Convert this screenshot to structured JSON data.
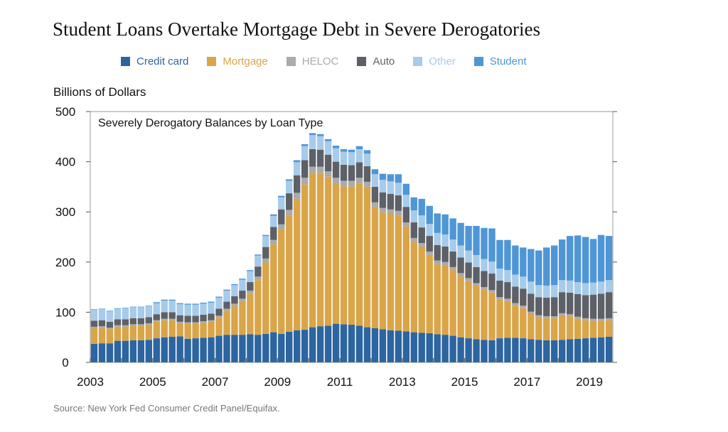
{
  "title": "Student Loans Overtake Mortgage Debt in Severe Derogatories",
  "source": "Source: New York Fed Consumer Credit Panel/Equifax.",
  "colors": {
    "Credit card": "#2c65a0",
    "Mortgage": "#d9a548",
    "HELOC": "#a9abad",
    "Auto": "#5d6167",
    "Other": "#a7cbea",
    "Student": "#4f96d6"
  },
  "chart_data": {
    "type": "bar",
    "stacked": true,
    "title": "Severely Derogatory Balances by Loan Type",
    "ylabel": "Billions of Dollars",
    "xlabel": "",
    "ylim": [
      0,
      500
    ],
    "yticks": [
      0,
      100,
      200,
      300,
      400,
      500
    ],
    "xticks": [
      "2003",
      "2005",
      "2007",
      "2009",
      "2011",
      "2013",
      "2015",
      "2017",
      "2019"
    ],
    "x_start": "2003 Q1",
    "categories": [
      "2003Q1",
      "2003Q2",
      "2003Q3",
      "2003Q4",
      "2004Q1",
      "2004Q2",
      "2004Q3",
      "2004Q4",
      "2005Q1",
      "2005Q2",
      "2005Q3",
      "2005Q4",
      "2006Q1",
      "2006Q2",
      "2006Q3",
      "2006Q4",
      "2007Q1",
      "2007Q2",
      "2007Q3",
      "2007Q4",
      "2008Q1",
      "2008Q2",
      "2008Q3",
      "2008Q4",
      "2009Q1",
      "2009Q2",
      "2009Q3",
      "2009Q4",
      "2010Q1",
      "2010Q2",
      "2010Q3",
      "2010Q4",
      "2011Q1",
      "2011Q2",
      "2011Q3",
      "2011Q4",
      "2012Q1",
      "2012Q2",
      "2012Q3",
      "2012Q4",
      "2013Q1",
      "2013Q2",
      "2013Q3",
      "2013Q4",
      "2014Q1",
      "2014Q2",
      "2014Q3",
      "2014Q4",
      "2015Q1",
      "2015Q2",
      "2015Q3",
      "2015Q4",
      "2016Q1",
      "2016Q2",
      "2016Q3",
      "2016Q4",
      "2017Q1",
      "2017Q2",
      "2017Q3",
      "2017Q4",
      "2018Q1",
      "2018Q2",
      "2018Q3",
      "2018Q4",
      "2019Q1",
      "2019Q2",
      "2019Q3"
    ],
    "series": [
      {
        "name": "Credit card",
        "values": [
          37,
          38,
          38,
          43,
          43,
          44,
          44,
          45,
          48,
          50,
          51,
          52,
          47,
          48,
          49,
          50,
          53,
          55,
          55,
          55,
          56,
          55,
          57,
          60,
          57,
          61,
          64,
          65,
          70,
          72,
          73,
          77,
          76,
          75,
          73,
          70,
          68,
          66,
          64,
          63,
          62,
          60,
          59,
          58,
          56,
          55,
          53,
          50,
          48,
          46,
          45,
          44,
          48,
          49,
          49,
          48,
          46,
          45,
          44,
          44,
          45,
          46,
          47,
          48,
          49,
          50,
          51
        ]
      },
      {
        "name": "Mortgage",
        "values": [
          31,
          31,
          28,
          28,
          28,
          29,
          29,
          30,
          33,
          34,
          33,
          26,
          30,
          29,
          30,
          31,
          36,
          48,
          57,
          67,
          81,
          109,
          142,
          175,
          208,
          232,
          262,
          290,
          308,
          306,
          297,
          280,
          275,
          276,
          285,
          280,
          242,
          233,
          232,
          230,
          209,
          180,
          172,
          156,
          140,
          138,
          131,
          122,
          114,
          107,
          100,
          95,
          77,
          73,
          64,
          60,
          51,
          45,
          44,
          44,
          49,
          46,
          40,
          36,
          34,
          33,
          33
        ]
      },
      {
        "name": "HELOC",
        "values": [
          3,
          3,
          3,
          3,
          3,
          3,
          3,
          3,
          3,
          3,
          3,
          3,
          3,
          3,
          3,
          3,
          4,
          4,
          5,
          5,
          6,
          7,
          8,
          9,
          10,
          11,
          12,
          13,
          12,
          12,
          11,
          11,
          11,
          11,
          10,
          10,
          9,
          9,
          9,
          9,
          8,
          8,
          7,
          7,
          7,
          7,
          6,
          6,
          6,
          5,
          5,
          5,
          5,
          5,
          5,
          5,
          4,
          4,
          4,
          4,
          4,
          4,
          4,
          4,
          4,
          4,
          4
        ]
      },
      {
        "name": "Auto",
        "values": [
          12,
          12,
          12,
          12,
          12,
          12,
          12,
          12,
          12,
          13,
          13,
          13,
          13,
          13,
          13,
          13,
          14,
          14,
          15,
          16,
          17,
          20,
          23,
          26,
          30,
          33,
          35,
          35,
          35,
          34,
          33,
          32,
          32,
          31,
          31,
          31,
          31,
          31,
          31,
          31,
          31,
          31,
          31,
          31,
          31,
          31,
          31,
          31,
          31,
          32,
          32,
          33,
          33,
          33,
          33,
          34,
          36,
          36,
          37,
          38,
          42,
          43,
          45,
          46,
          48,
          50,
          52
        ]
      },
      {
        "name": "Other",
        "values": [
          22,
          22,
          21,
          21,
          22,
          22,
          22,
          22,
          22,
          23,
          23,
          22,
          22,
          22,
          22,
          22,
          22,
          22,
          22,
          22,
          22,
          22,
          22,
          22,
          24,
          25,
          26,
          28,
          28,
          27,
          27,
          27,
          26,
          26,
          26,
          25,
          25,
          25,
          25,
          25,
          24,
          24,
          24,
          24,
          24,
          24,
          24,
          24,
          24,
          24,
          24,
          24,
          24,
          24,
          24,
          24,
          24,
          24,
          24,
          24,
          24,
          24,
          24,
          24,
          24,
          24,
          24
        ]
      },
      {
        "name": "Student",
        "values": [
          1,
          1,
          1,
          1,
          1,
          1,
          1,
          1,
          2,
          2,
          2,
          2,
          2,
          2,
          2,
          2,
          2,
          2,
          2,
          2,
          2,
          2,
          2,
          3,
          3,
          3,
          4,
          4,
          4,
          4,
          4,
          5,
          5,
          5,
          6,
          7,
          10,
          12,
          14,
          17,
          22,
          26,
          33,
          36,
          39,
          40,
          42,
          45,
          49,
          58,
          62,
          66,
          57,
          60,
          58,
          58,
          65,
          69,
          76,
          79,
          81,
          89,
          93,
          92,
          87,
          93,
          88
        ]
      }
    ]
  }
}
